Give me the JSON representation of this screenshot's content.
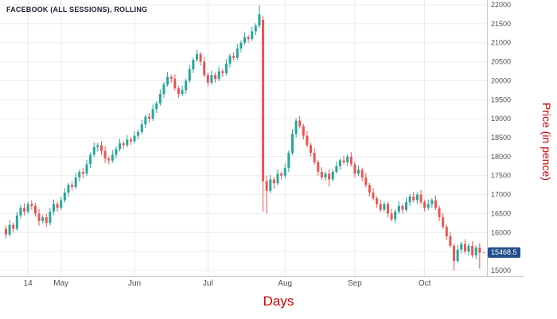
{
  "title": "FACEBOOK (ALL SESSIONS), ROLLING",
  "last_price": "15468.5",
  "colors": {
    "up": "#26a69a",
    "down": "#ef5350",
    "axis_title": "#cc0000",
    "badge_bg": "#234e8c",
    "grid": "#ebebeb",
    "axis_border": "#c9c9c9",
    "tick_text": "#4f4f4f",
    "last_price_line": "#9a9a9a"
  },
  "chart_data": {
    "type": "candlestick",
    "title": "FACEBOOK (ALL SESSIONS), ROLLING",
    "xlabel": "Days",
    "ylabel": "Price (in pence)",
    "ylim": [
      15000,
      22000
    ],
    "grid": true,
    "y_ticks": [
      22000,
      21500,
      21000,
      20500,
      20000,
      19500,
      19000,
      18500,
      18000,
      17500,
      17000,
      16500,
      16000,
      15500,
      15000
    ],
    "x_ticks": [
      {
        "label": "14",
        "index": 6
      },
      {
        "label": "May",
        "index": 15
      },
      {
        "label": "Jun",
        "index": 35
      },
      {
        "label": "Jul",
        "index": 55
      },
      {
        "label": "Aug",
        "index": 76
      },
      {
        "label": "Sep",
        "index": 95
      },
      {
        "label": "Oct",
        "index": 114
      }
    ],
    "last_close": 15468.5,
    "candles_ohlc": [
      [
        16100,
        16180,
        15850,
        15950
      ],
      [
        15950,
        16320,
        15890,
        16200
      ],
      [
        16200,
        16260,
        16000,
        16100
      ],
      [
        16100,
        16550,
        16040,
        16450
      ],
      [
        16450,
        16730,
        16370,
        16650
      ],
      [
        16650,
        16770,
        16450,
        16550
      ],
      [
        16550,
        16810,
        16490,
        16750
      ],
      [
        16750,
        16850,
        16600,
        16700
      ],
      [
        16700,
        16780,
        16420,
        16500
      ],
      [
        16500,
        16620,
        16180,
        16300
      ],
      [
        16300,
        16460,
        16240,
        16400
      ],
      [
        16400,
        16500,
        16150,
        16250
      ],
      [
        16250,
        16650,
        16190,
        16550
      ],
      [
        16550,
        16870,
        16470,
        16750
      ],
      [
        16750,
        16810,
        16550,
        16650
      ],
      [
        16650,
        16950,
        16590,
        16850
      ],
      [
        16850,
        17170,
        16790,
        17050
      ],
      [
        17050,
        17310,
        16950,
        17250
      ],
      [
        17250,
        17350,
        17100,
        17200
      ],
      [
        17200,
        17570,
        17140,
        17450
      ],
      [
        17450,
        17660,
        17350,
        17600
      ],
      [
        17600,
        17700,
        17430,
        17550
      ],
      [
        17550,
        17920,
        17490,
        17800
      ],
      [
        17800,
        18110,
        17700,
        18050
      ],
      [
        18050,
        18370,
        17990,
        18250
      ],
      [
        18250,
        18360,
        18130,
        18300
      ],
      [
        18300,
        18400,
        18050,
        18150
      ],
      [
        18150,
        18270,
        17830,
        17950
      ],
      [
        17950,
        18010,
        17800,
        17900
      ],
      [
        17900,
        18170,
        17840,
        18050
      ],
      [
        18050,
        18260,
        17950,
        18200
      ],
      [
        18200,
        18470,
        18140,
        18350
      ],
      [
        18350,
        18410,
        18200,
        18300
      ],
      [
        18300,
        18570,
        18240,
        18450
      ],
      [
        18450,
        18510,
        18300,
        18400
      ],
      [
        18400,
        18670,
        18340,
        18550
      ],
      [
        18550,
        18710,
        18450,
        18650
      ],
      [
        18650,
        18970,
        18590,
        18850
      ],
      [
        18850,
        19110,
        18750,
        19050
      ],
      [
        19050,
        19150,
        18900,
        19000
      ],
      [
        19000,
        19370,
        18940,
        19250
      ],
      [
        19250,
        19460,
        19150,
        19400
      ],
      [
        19400,
        19770,
        19340,
        19650
      ],
      [
        19650,
        19960,
        19550,
        19900
      ],
      [
        19900,
        20220,
        19840,
        20100
      ],
      [
        20100,
        20160,
        19950,
        20050
      ],
      [
        20050,
        20170,
        19740,
        19800
      ],
      [
        19800,
        19860,
        19550,
        19650
      ],
      [
        19650,
        19870,
        19590,
        19750
      ],
      [
        19750,
        20060,
        19650,
        20000
      ],
      [
        20000,
        20420,
        19940,
        20300
      ],
      [
        20300,
        20610,
        20200,
        20550
      ],
      [
        20550,
        20820,
        20490,
        20700
      ],
      [
        20700,
        20760,
        20400,
        20500
      ],
      [
        20500,
        20620,
        20090,
        20150
      ],
      [
        20150,
        20210,
        19850,
        19950
      ],
      [
        19950,
        20270,
        19890,
        20150
      ],
      [
        20150,
        20210,
        19950,
        20050
      ],
      [
        20050,
        20370,
        19990,
        20250
      ],
      [
        20250,
        20310,
        20100,
        20200
      ],
      [
        20200,
        20570,
        20140,
        20450
      ],
      [
        20450,
        20710,
        20350,
        20650
      ],
      [
        20650,
        20750,
        20530,
        20600
      ],
      [
        20600,
        20970,
        20540,
        20850
      ],
      [
        20850,
        21060,
        20750,
        21000
      ],
      [
        21000,
        21270,
        20940,
        21150
      ],
      [
        21150,
        21210,
        21000,
        21100
      ],
      [
        21100,
        21420,
        21040,
        21300
      ],
      [
        21300,
        21510,
        21200,
        21450
      ],
      [
        21450,
        21990,
        21390,
        21750
      ],
      [
        21600,
        21700,
        16550,
        17350
      ],
      [
        17350,
        17500,
        16500,
        17100
      ],
      [
        17100,
        17520,
        17040,
        17400
      ],
      [
        17400,
        17460,
        17150,
        17300
      ],
      [
        17300,
        17670,
        17240,
        17550
      ],
      [
        17550,
        17610,
        17400,
        17500
      ],
      [
        17500,
        17820,
        17440,
        17700
      ],
      [
        17700,
        18160,
        17600,
        18100
      ],
      [
        18100,
        18720,
        18040,
        18600
      ],
      [
        18600,
        19010,
        18500,
        18950
      ],
      [
        18950,
        19070,
        18740,
        18800
      ],
      [
        18800,
        18860,
        18450,
        18550
      ],
      [
        18550,
        18670,
        18240,
        18300
      ],
      [
        18300,
        18360,
        18000,
        18100
      ],
      [
        18100,
        18220,
        17790,
        17850
      ],
      [
        17850,
        17910,
        17500,
        17600
      ],
      [
        17600,
        17720,
        17390,
        17450
      ],
      [
        17450,
        17610,
        17350,
        17550
      ],
      [
        17550,
        17670,
        17210,
        17400
      ],
      [
        17400,
        17660,
        17340,
        17600
      ],
      [
        17600,
        17870,
        17540,
        17750
      ],
      [
        17750,
        17960,
        17650,
        17900
      ],
      [
        17900,
        18020,
        17790,
        17850
      ],
      [
        17850,
        18060,
        17750,
        18000
      ],
      [
        18000,
        18120,
        17740,
        17800
      ],
      [
        17800,
        17860,
        17450,
        17550
      ],
      [
        17550,
        17770,
        17490,
        17650
      ],
      [
        17650,
        17710,
        17350,
        17450
      ],
      [
        17450,
        17570,
        17190,
        17250
      ],
      [
        17250,
        17310,
        16950,
        17050
      ],
      [
        17050,
        17170,
        16840,
        16900
      ],
      [
        16900,
        16960,
        16650,
        16750
      ],
      [
        16750,
        16870,
        16540,
        16600
      ],
      [
        16600,
        16810,
        16540,
        16750
      ],
      [
        16750,
        16810,
        16400,
        16500
      ],
      [
        16500,
        16620,
        16290,
        16350
      ],
      [
        16350,
        16610,
        16250,
        16550
      ],
      [
        16550,
        16820,
        16490,
        16700
      ],
      [
        16700,
        16760,
        16500,
        16600
      ],
      [
        16600,
        16920,
        16540,
        16800
      ],
      [
        16800,
        17010,
        16700,
        16950
      ],
      [
        16950,
        17070,
        16790,
        16850
      ],
      [
        16850,
        17060,
        16750,
        17000
      ],
      [
        17000,
        17120,
        16740,
        16800
      ],
      [
        16800,
        16860,
        16550,
        16650
      ],
      [
        16650,
        16870,
        16590,
        16750
      ],
      [
        16750,
        16910,
        16650,
        16850
      ],
      [
        16850,
        16970,
        16590,
        16650
      ],
      [
        16650,
        16710,
        16300,
        16400
      ],
      [
        16400,
        16520,
        16090,
        16150
      ],
      [
        16150,
        16210,
        15800,
        15900
      ],
      [
        15900,
        16020,
        15590,
        15650
      ],
      [
        15650,
        15710,
        15000,
        15250
      ],
      [
        15250,
        15670,
        15190,
        15550
      ],
      [
        15550,
        15760,
        15450,
        15700
      ],
      [
        15700,
        15820,
        15440,
        15500
      ],
      [
        15500,
        15710,
        15400,
        15650
      ],
      [
        15650,
        15770,
        15340,
        15400
      ],
      [
        15400,
        15660,
        15300,
        15600
      ],
      [
        15600,
        15720,
        15050,
        15468.5
      ]
    ]
  }
}
